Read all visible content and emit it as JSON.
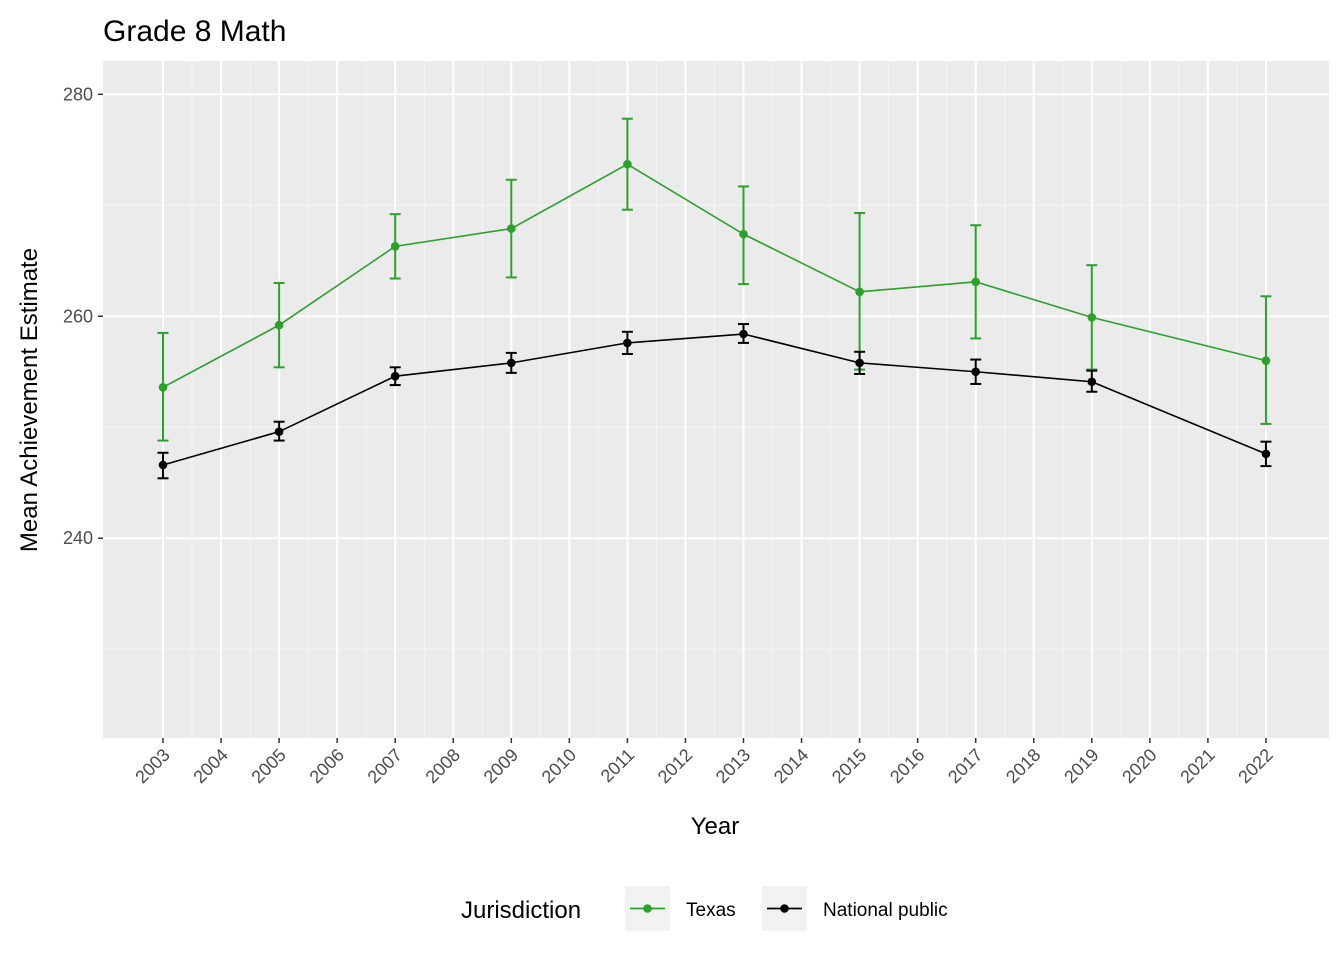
{
  "chart_data": {
    "type": "line",
    "title": "Grade 8 Math",
    "xlabel": "Year",
    "ylabel": "Mean Achievement Estimate",
    "x_categories": [
      "2003",
      "2004",
      "2005",
      "2006",
      "2007",
      "2008",
      "2009",
      "2010",
      "2011",
      "2012",
      "2013",
      "2014",
      "2015",
      "2016",
      "2017",
      "2018",
      "2019",
      "2020",
      "2021",
      "2022"
    ],
    "ylim": [
      222,
      283
    ],
    "y_major_ticks": [
      240,
      260,
      280
    ],
    "y_minor_ticks": [
      230,
      250,
      270
    ],
    "legend": {
      "title": "Jurisdiction",
      "position": "bottom",
      "entries": [
        "Texas",
        "National public"
      ]
    },
    "series": [
      {
        "name": "Texas",
        "color": "#2ca02c",
        "x": [
          "2003",
          "2005",
          "2007",
          "2009",
          "2011",
          "2013",
          "2015",
          "2017",
          "2019",
          "2022"
        ],
        "y": [
          253.6,
          259.2,
          266.3,
          267.9,
          273.7,
          267.4,
          262.2,
          263.1,
          259.9,
          256.0
        ],
        "lower": [
          248.8,
          255.4,
          263.4,
          263.5,
          269.6,
          262.9,
          255.2,
          258.0,
          255.2,
          250.3
        ],
        "upper": [
          258.5,
          263.0,
          269.2,
          272.3,
          277.8,
          271.7,
          269.3,
          268.2,
          264.6,
          261.8
        ]
      },
      {
        "name": "National public",
        "color": "#000000",
        "x": [
          "2003",
          "2005",
          "2007",
          "2009",
          "2011",
          "2013",
          "2015",
          "2017",
          "2019",
          "2022"
        ],
        "y": [
          246.6,
          249.6,
          254.6,
          255.8,
          257.6,
          258.4,
          255.8,
          255.0,
          254.1,
          247.6
        ],
        "lower": [
          245.4,
          248.8,
          253.8,
          254.9,
          256.6,
          257.6,
          254.8,
          253.9,
          253.2,
          246.5
        ],
        "upper": [
          247.7,
          250.5,
          255.4,
          256.7,
          258.6,
          259.3,
          256.8,
          256.1,
          255.1,
          248.7
        ]
      }
    ]
  }
}
